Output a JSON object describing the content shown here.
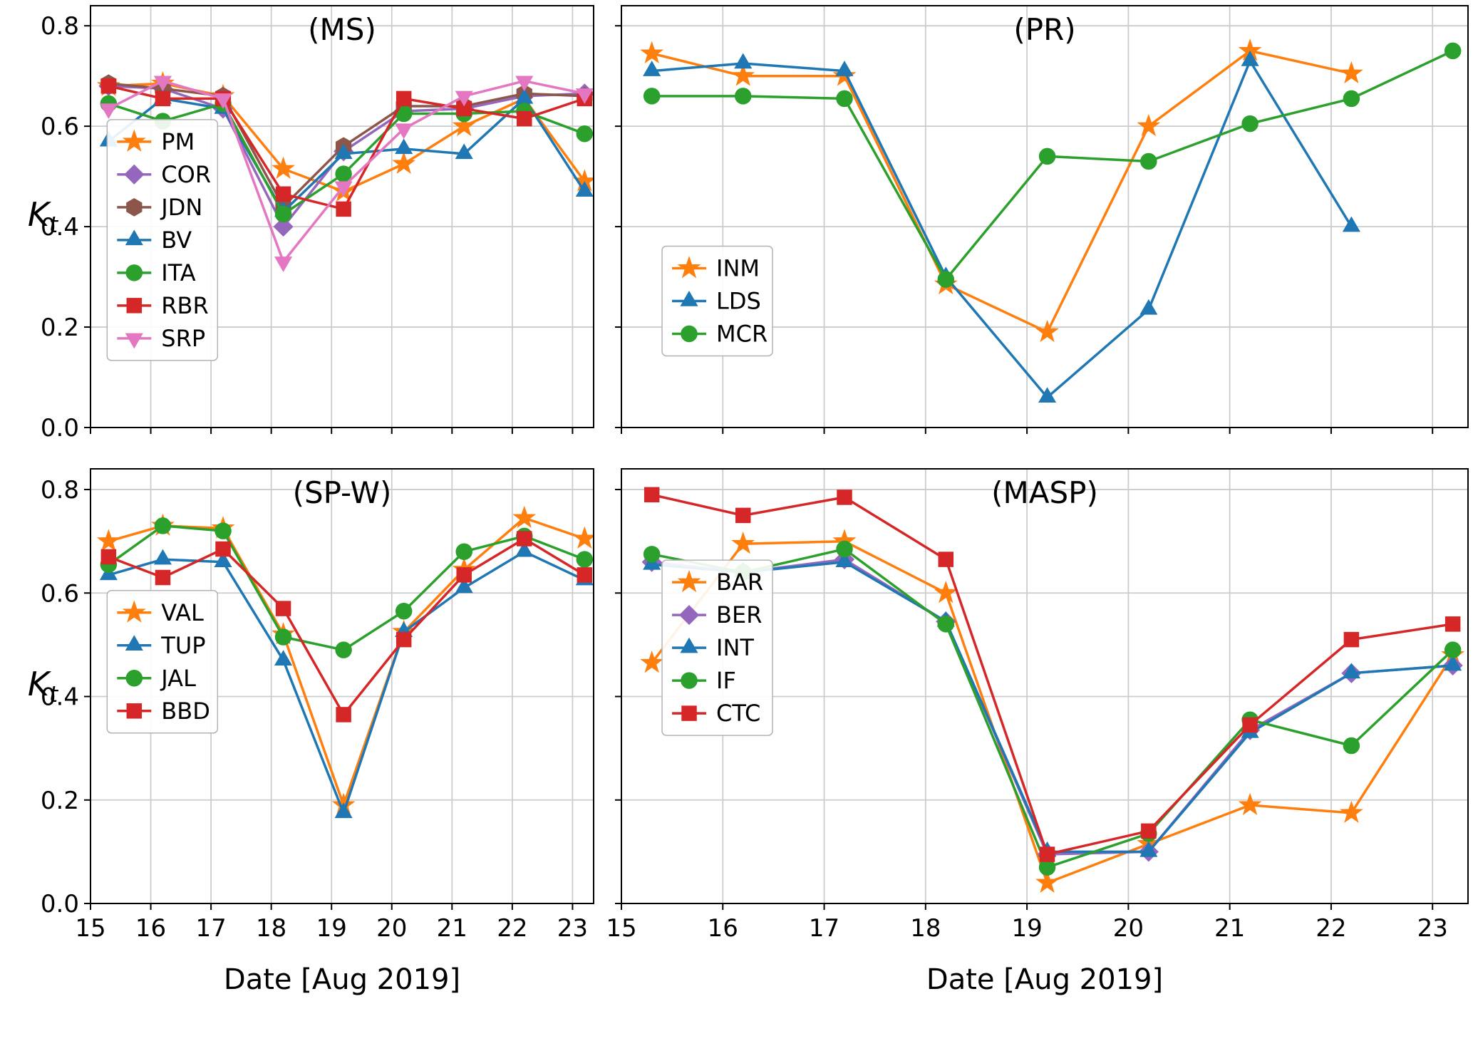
{
  "figure": {
    "background": "#ffffff",
    "xlabel": "Date [Aug 2019]",
    "ylabel_base": "K",
    "ylabel_sub": "t"
  },
  "chart_data": [
    {
      "type": "line",
      "title": "(MS)",
      "x": [
        15.3,
        16.2,
        17.2,
        18.2,
        19.2,
        20.2,
        21.2,
        22.2,
        23.2
      ],
      "xlim": [
        15,
        23.35
      ],
      "ylim": [
        0,
        0.84
      ],
      "xticks": [
        15,
        16,
        17,
        18,
        19,
        20,
        21,
        22,
        23
      ],
      "yticks": [
        0.0,
        0.2,
        0.4,
        0.6,
        0.8
      ],
      "grid": true,
      "series": [
        {
          "name": "PM",
          "color": "#ff7f0e",
          "marker": "star",
          "values": [
            0.68,
            0.685,
            0.66,
            0.515,
            0.47,
            0.525,
            0.6,
            0.655,
            0.49
          ]
        },
        {
          "name": "COR",
          "color": "#9467bd",
          "marker": "diamond",
          "values": [
            0.68,
            0.675,
            0.635,
            0.4,
            0.55,
            0.63,
            0.635,
            0.66,
            0.665
          ]
        },
        {
          "name": "JDN",
          "color": "#8c564b",
          "marker": "hexagon",
          "values": [
            0.685,
            0.675,
            0.66,
            0.44,
            0.56,
            0.64,
            0.64,
            0.665,
            0.66
          ]
        },
        {
          "name": "BV",
          "color": "#1f77b4",
          "marker": "triangle-up",
          "values": [
            0.57,
            0.655,
            0.635,
            0.43,
            0.545,
            0.555,
            0.545,
            0.655,
            0.47
          ]
        },
        {
          "name": "ITA",
          "color": "#2ca02c",
          "marker": "circle",
          "values": [
            0.645,
            0.61,
            0.645,
            0.425,
            0.505,
            0.625,
            0.625,
            0.63,
            0.585
          ]
        },
        {
          "name": "RBR",
          "color": "#d62728",
          "marker": "square",
          "values": [
            0.68,
            0.655,
            0.655,
            0.465,
            0.435,
            0.655,
            0.635,
            0.615,
            0.655
          ]
        },
        {
          "name": "SRP",
          "color": "#e377c2",
          "marker": "triangle-down",
          "values": [
            0.635,
            0.69,
            0.655,
            0.33,
            0.48,
            0.595,
            0.66,
            0.69,
            0.665
          ]
        }
      ]
    },
    {
      "type": "line",
      "title": "(PR)",
      "x": [
        15.3,
        16.2,
        17.2,
        18.2,
        19.2,
        20.2,
        21.2,
        22.2,
        23.2
      ],
      "xlim": [
        15,
        23.35
      ],
      "ylim": [
        0,
        0.84
      ],
      "xticks": [
        15,
        16,
        17,
        18,
        19,
        20,
        21,
        22,
        23
      ],
      "yticks": [
        0.0,
        0.2,
        0.4,
        0.6,
        0.8
      ],
      "grid": true,
      "series": [
        {
          "name": "INM",
          "color": "#ff7f0e",
          "marker": "star",
          "values": [
            0.745,
            0.7,
            0.7,
            0.285,
            0.19,
            0.6,
            0.75,
            0.705,
            null
          ]
        },
        {
          "name": "LDS",
          "color": "#1f77b4",
          "marker": "triangle-up",
          "values": [
            0.71,
            0.725,
            0.71,
            0.3,
            0.06,
            0.235,
            0.73,
            0.4,
            null
          ]
        },
        {
          "name": "MCR",
          "color": "#2ca02c",
          "marker": "circle",
          "values": [
            0.66,
            0.66,
            0.655,
            0.295,
            0.54,
            0.53,
            0.605,
            0.655,
            0.75
          ]
        }
      ]
    },
    {
      "type": "line",
      "title": "(SP-W)",
      "x": [
        15.3,
        16.2,
        17.2,
        18.2,
        19.2,
        20.2,
        21.2,
        22.2,
        23.2
      ],
      "xlim": [
        15,
        23.35
      ],
      "ylim": [
        0,
        0.84
      ],
      "xticks": [
        15,
        16,
        17,
        18,
        19,
        20,
        21,
        22,
        23
      ],
      "yticks": [
        0.0,
        0.2,
        0.4,
        0.6,
        0.8
      ],
      "grid": true,
      "series": [
        {
          "name": "VAL",
          "color": "#ff7f0e",
          "marker": "star",
          "values": [
            0.7,
            0.73,
            0.725,
            0.52,
            0.19,
            0.525,
            0.645,
            0.745,
            0.705
          ]
        },
        {
          "name": "TUP",
          "color": "#1f77b4",
          "marker": "triangle-up",
          "values": [
            0.635,
            0.665,
            0.66,
            0.47,
            0.175,
            0.525,
            0.61,
            0.68,
            0.625
          ]
        },
        {
          "name": "JAL",
          "color": "#2ca02c",
          "marker": "circle",
          "values": [
            0.655,
            0.73,
            0.72,
            0.515,
            0.49,
            0.565,
            0.68,
            0.71,
            0.665
          ]
        },
        {
          "name": "BBD",
          "color": "#d62728",
          "marker": "square",
          "values": [
            0.67,
            0.63,
            0.685,
            0.57,
            0.365,
            0.51,
            0.635,
            0.705,
            0.635
          ]
        }
      ]
    },
    {
      "type": "line",
      "title": "(MASP)",
      "x": [
        15.3,
        16.2,
        17.2,
        18.2,
        19.2,
        20.2,
        21.2,
        22.2,
        23.2
      ],
      "xlim": [
        15,
        23.35
      ],
      "ylim": [
        0,
        0.84
      ],
      "xticks": [
        15,
        16,
        17,
        18,
        19,
        20,
        21,
        22,
        23
      ],
      "yticks": [
        0.0,
        0.2,
        0.4,
        0.6,
        0.8
      ],
      "grid": true,
      "series": [
        {
          "name": "BAR",
          "color": "#ff7f0e",
          "marker": "star",
          "values": [
            0.465,
            0.695,
            0.7,
            0.6,
            0.04,
            0.115,
            0.19,
            0.175,
            0.48
          ]
        },
        {
          "name": "BER",
          "color": "#9467bd",
          "marker": "diamond",
          "values": [
            0.66,
            0.64,
            0.665,
            0.545,
            0.095,
            0.1,
            0.335,
            0.445,
            0.46
          ]
        },
        {
          "name": "INT",
          "color": "#1f77b4",
          "marker": "triangle-up",
          "values": [
            0.655,
            0.64,
            0.66,
            0.545,
            0.1,
            0.1,
            0.33,
            0.445,
            0.46
          ]
        },
        {
          "name": "IF",
          "color": "#2ca02c",
          "marker": "circle",
          "values": [
            0.675,
            0.64,
            0.685,
            0.54,
            0.07,
            0.135,
            0.355,
            0.305,
            0.49
          ]
        },
        {
          "name": "CTC",
          "color": "#d62728",
          "marker": "square",
          "values": [
            0.79,
            0.75,
            0.785,
            0.665,
            0.095,
            0.14,
            0.345,
            0.51,
            0.54
          ]
        }
      ]
    }
  ]
}
